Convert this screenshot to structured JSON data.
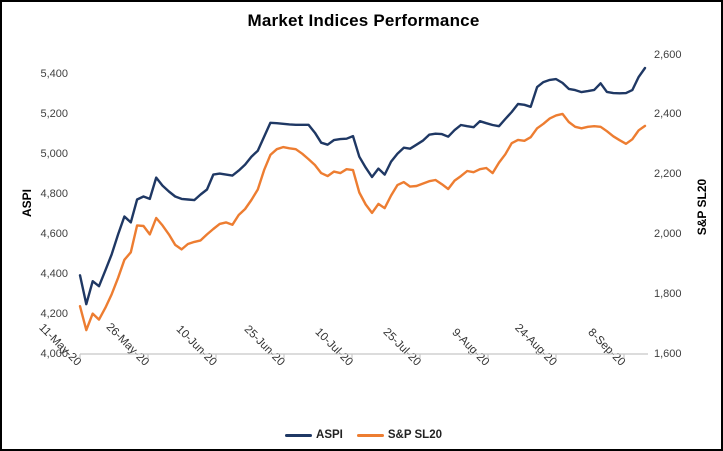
{
  "chart_data": {
    "type": "line",
    "title": "Market Indices Performance",
    "grid": false,
    "legend_position": "bottom",
    "left_axis": {
      "title": "ASPI",
      "min": 4000,
      "max": 5500,
      "tick_step": 200,
      "tick_labels": [
        "4,000",
        "4,200",
        "4,400",
        "4,600",
        "4,800",
        "5,000",
        "5,200",
        "5,400"
      ]
    },
    "right_axis": {
      "title": "S&P SL20",
      "min": 1600,
      "max": 2600,
      "tick_step": 200,
      "tick_labels": [
        "1,600",
        "1,800",
        "2,000",
        "2,200",
        "2,400",
        "2,600"
      ]
    },
    "x_axis": {
      "tick_labels": [
        "11-May-20",
        "26-May-20",
        "10-Jun-20",
        "25-Jun-20",
        "10-Jul-20",
        "25-Jul-20",
        "9-Aug-20",
        "24-Aug-20",
        "8-Sep-20"
      ]
    },
    "series": [
      {
        "name": "ASPI",
        "axis": "left",
        "color": "#1F3864",
        "values": [
          4395,
          4250,
          4365,
          4340,
          4420,
          4500,
          4600,
          4690,
          4660,
          4775,
          4790,
          4778,
          4885,
          4845,
          4815,
          4790,
          4778,
          4775,
          4772,
          4800,
          4825,
          4900,
          4905,
          4900,
          4895,
          4920,
          4950,
          4990,
          5020,
          5090,
          5160,
          5158,
          5155,
          5152,
          5150,
          5150,
          5150,
          5110,
          5060,
          5050,
          5073,
          5078,
          5080,
          5093,
          4990,
          4935,
          4888,
          4930,
          4900,
          4965,
          5005,
          5035,
          5030,
          5050,
          5070,
          5100,
          5105,
          5103,
          5090,
          5123,
          5149,
          5143,
          5138,
          5168,
          5158,
          5149,
          5143,
          5179,
          5214,
          5254,
          5250,
          5240,
          5339,
          5364,
          5375,
          5379,
          5360,
          5330,
          5324,
          5314,
          5319,
          5325,
          5358,
          5315,
          5309,
          5308,
          5309,
          5324,
          5390,
          5435
        ]
      },
      {
        "name": "S&P SL20",
        "axis": "right",
        "color": "#ED7D31",
        "values": [
          1760,
          1680,
          1735,
          1715,
          1755,
          1800,
          1855,
          1915,
          1940,
          2030,
          2028,
          2000,
          2055,
          2030,
          2000,
          1965,
          1950,
          1968,
          1975,
          1980,
          2000,
          2018,
          2035,
          2040,
          2032,
          2065,
          2085,
          2115,
          2150,
          2215,
          2266,
          2285,
          2292,
          2288,
          2285,
          2270,
          2252,
          2232,
          2205,
          2195,
          2210,
          2205,
          2218,
          2215,
          2140,
          2100,
          2072,
          2102,
          2088,
          2130,
          2165,
          2175,
          2160,
          2162,
          2170,
          2178,
          2182,
          2168,
          2152,
          2180,
          2195,
          2212,
          2208,
          2218,
          2222,
          2205,
          2240,
          2268,
          2305,
          2316,
          2313,
          2325,
          2355,
          2370,
          2388,
          2398,
          2403,
          2376,
          2360,
          2355,
          2360,
          2362,
          2360,
          2345,
          2328,
          2315,
          2303,
          2318,
          2348,
          2363
        ]
      }
    ],
    "axis_line_color": "#C8C8C8"
  }
}
